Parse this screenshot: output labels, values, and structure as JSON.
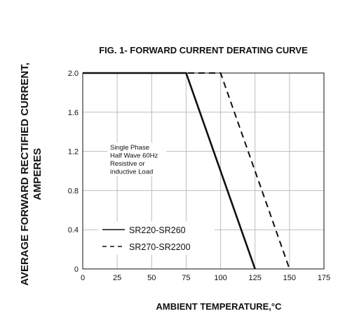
{
  "chart_data": {
    "type": "line",
    "title": "FIG. 1- FORWARD CURRENT DERATING CURVE",
    "xlabel": "AMBIENT TEMPERATURE,°C",
    "ylabel_line1": "AVERAGE FORWARD RECTIFIED CURRENT,",
    "ylabel_line2": "AMPERES",
    "xlim": [
      0,
      175
    ],
    "ylim": [
      0,
      2.0
    ],
    "x_ticks": [
      0,
      25,
      50,
      75,
      100,
      125,
      150,
      175
    ],
    "y_ticks": [
      "0",
      "0.4",
      "0.8",
      "1.2",
      "1.6",
      "2.0"
    ],
    "y_tick_values": [
      0,
      0.4,
      0.8,
      1.2,
      1.6,
      2.0
    ],
    "grid": true,
    "annotation": [
      "Single Phase",
      "Half Wave 60Hz",
      "Resistive or",
      "inductive Load"
    ],
    "series": [
      {
        "name": "SR220-SR260",
        "style": "solid",
        "color": "#111111",
        "x": [
          0,
          75,
          125
        ],
        "y": [
          2.0,
          2.0,
          0
        ]
      },
      {
        "name": "SR270-SR2200",
        "style": "dashed",
        "color": "#111111",
        "x": [
          0,
          100,
          150
        ],
        "y": [
          2.0,
          2.0,
          0
        ]
      }
    ],
    "legend_placement": "bottom-left"
  }
}
